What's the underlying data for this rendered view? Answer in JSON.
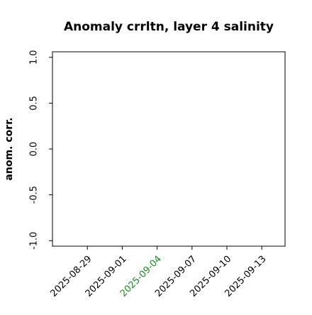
{
  "chart_data": {
    "type": "line",
    "title": "Anomaly crrltn, layer 4 salinity",
    "ylabel": "anom. corr.",
    "series": [],
    "xlim": [
      "2025-08-26",
      "2025-09-15"
    ],
    "xticks": [
      "2025-08-29",
      "2025-09-01",
      "2025-09-04",
      "2025-09-07",
      "2025-09-10",
      "2025-09-13"
    ],
    "xtick_colors": [
      "#000000",
      "#000000",
      "#228b22",
      "#000000",
      "#000000",
      "#000000"
    ],
    "ylim": [
      -1.06,
      1.06
    ],
    "yticks": [
      {
        "value": -1,
        "label": "-1.0"
      },
      -0.5,
      {
        "value": 0,
        "label": "0.0"
      },
      0.5,
      {
        "value": 1,
        "label": "1.0"
      }
    ],
    "grid": false
  }
}
